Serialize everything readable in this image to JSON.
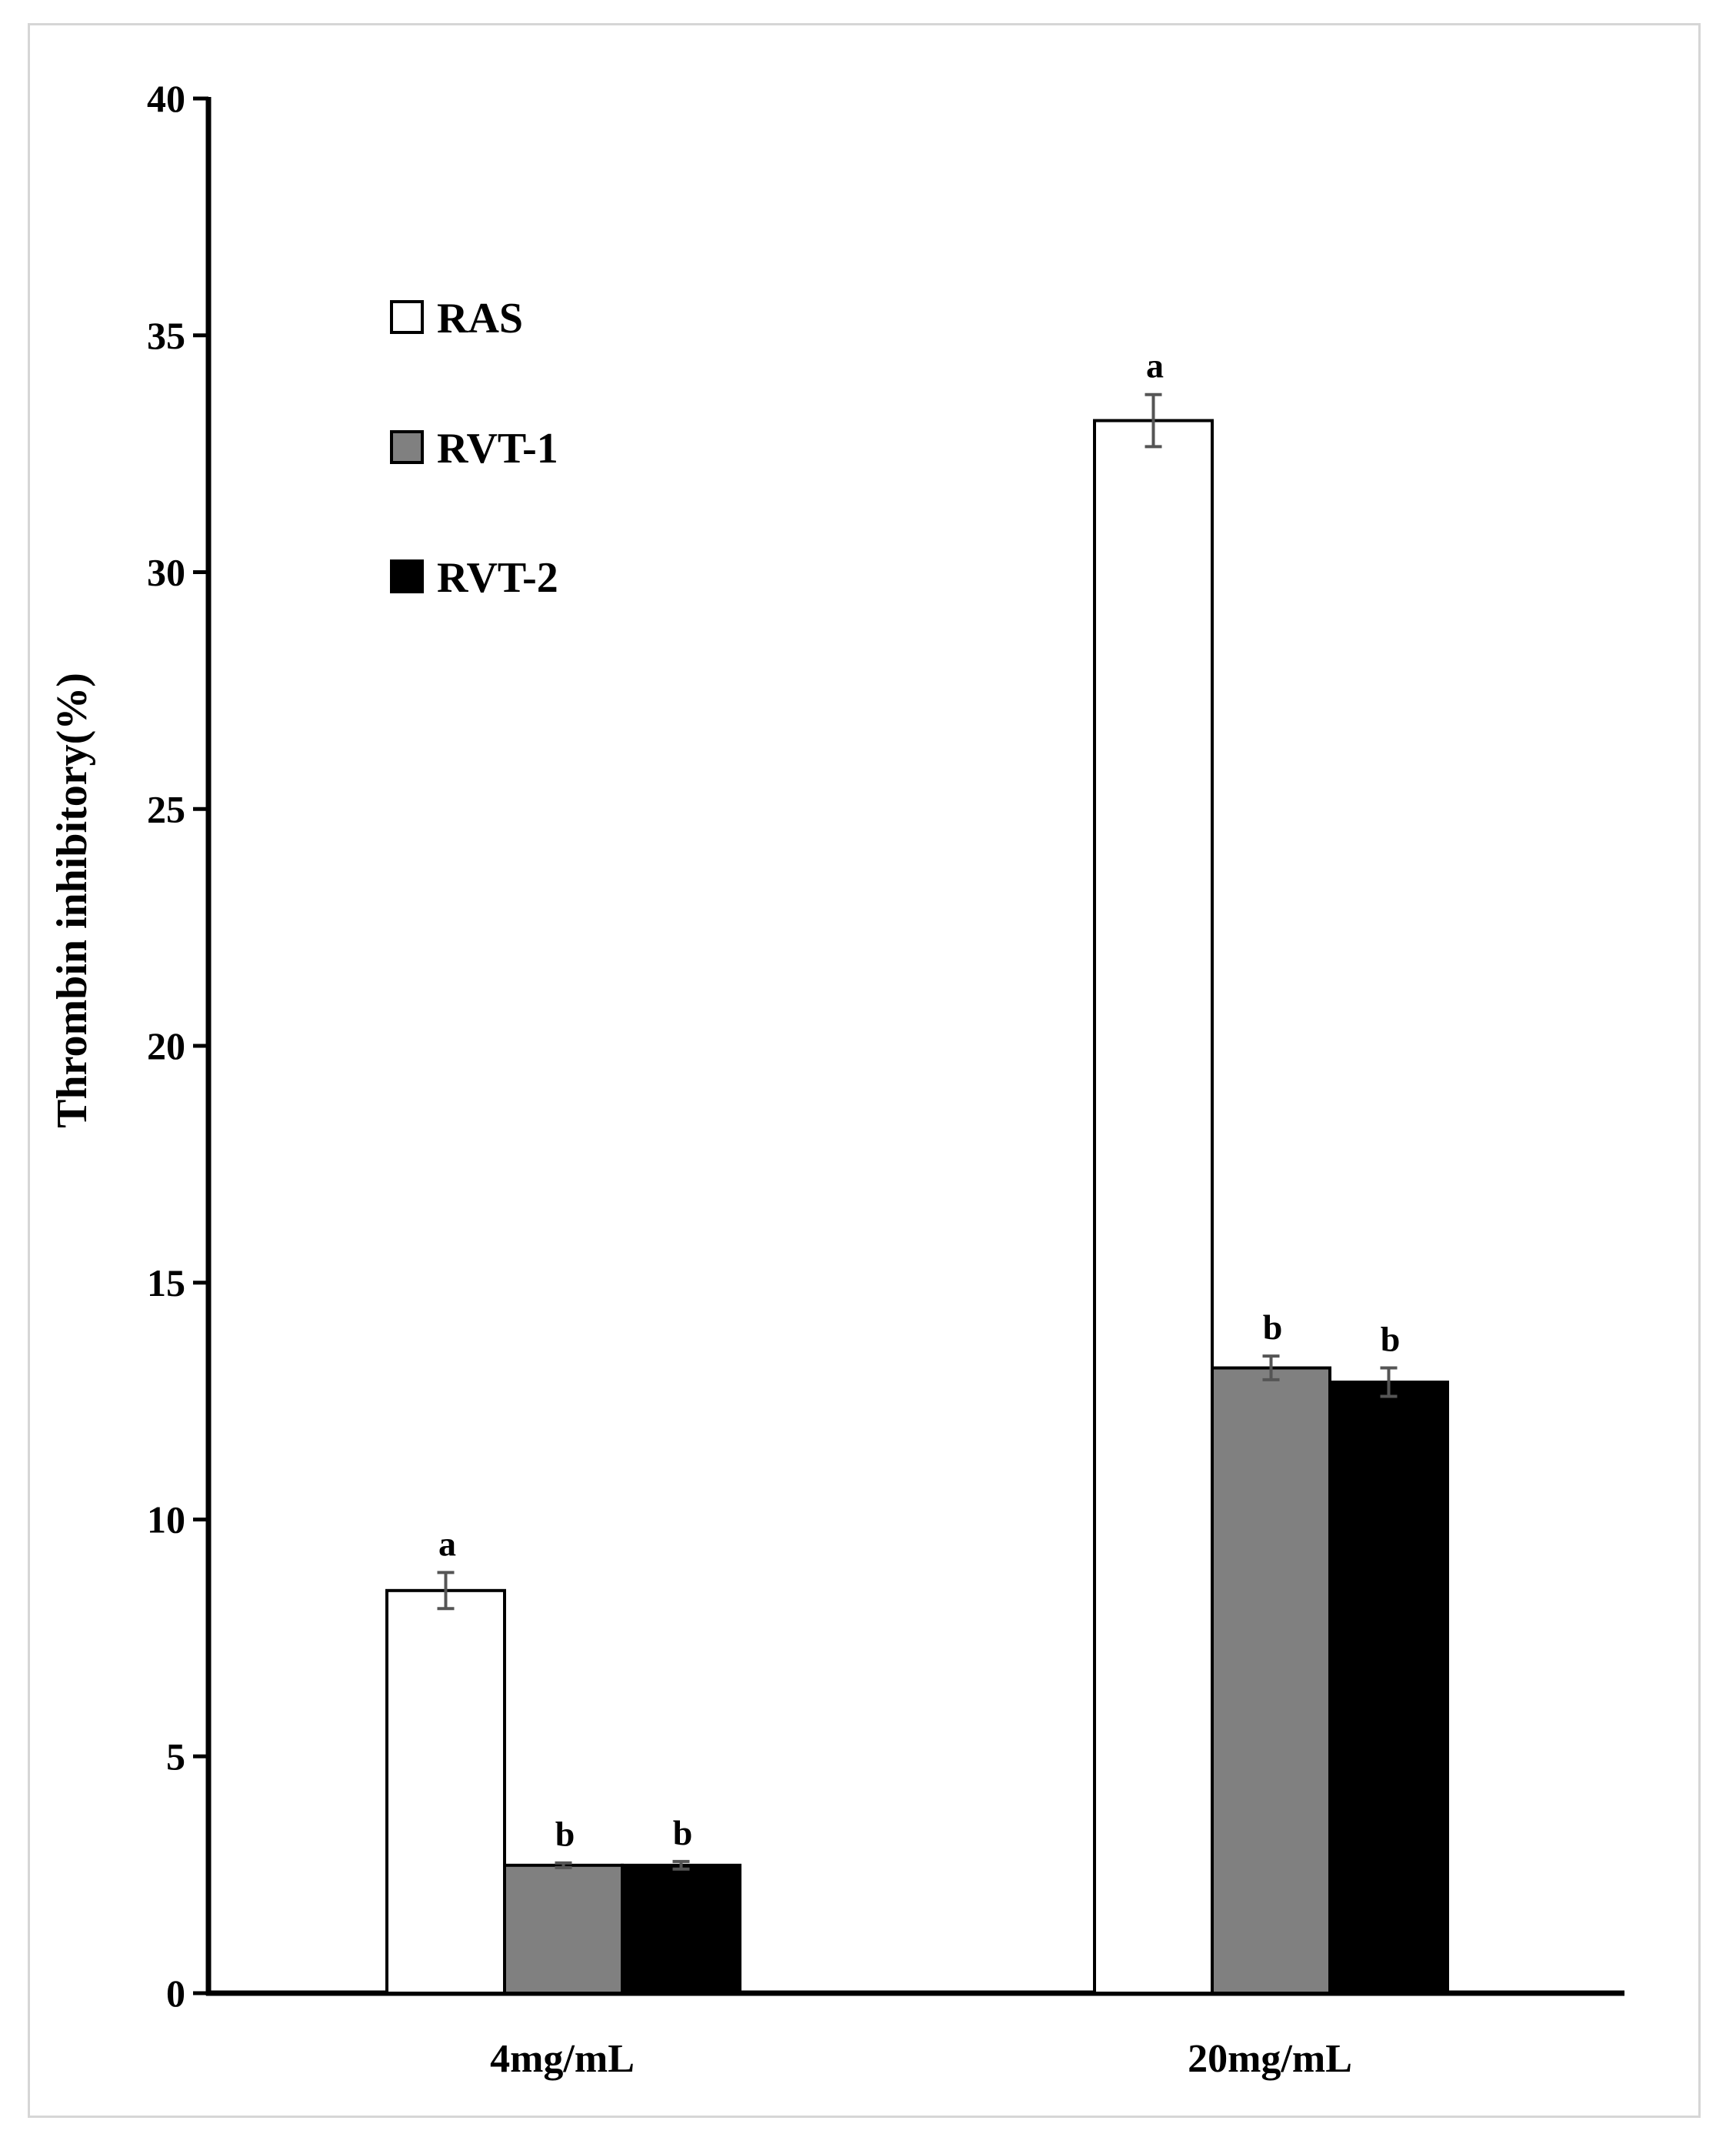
{
  "chart_data": {
    "type": "bar",
    "title": "",
    "xlabel": "",
    "ylabel": "Thrombin inhibitory(%)",
    "ylim": [
      0,
      40
    ],
    "yticks": [
      0,
      5,
      10,
      15,
      20,
      25,
      30,
      35,
      40
    ],
    "ytick_labels": [
      "0",
      "5",
      "10",
      "15",
      "20",
      "25",
      "30",
      "35",
      "40"
    ],
    "grid": false,
    "legend_position": "top-left",
    "categories": [
      "4mg/mL",
      "20mg/mL"
    ],
    "series": [
      {
        "name": "RAS",
        "values": [
          8.5,
          33.2
        ],
        "errors": [
          0.38,
          0.55
        ],
        "letters": [
          "a",
          "a"
        ],
        "color": "#ffffff"
      },
      {
        "name": "RVT-1",
        "values": [
          2.7,
          13.2
        ],
        "errors": [
          0.05,
          0.25
        ],
        "letters": [
          "b",
          "b"
        ],
        "color": "#808080"
      },
      {
        "name": "RVT-2",
        "values": [
          2.7,
          12.9
        ],
        "errors": [
          0.08,
          0.3
        ],
        "letters": [
          "b",
          "b"
        ],
        "color": "#000000"
      }
    ]
  }
}
